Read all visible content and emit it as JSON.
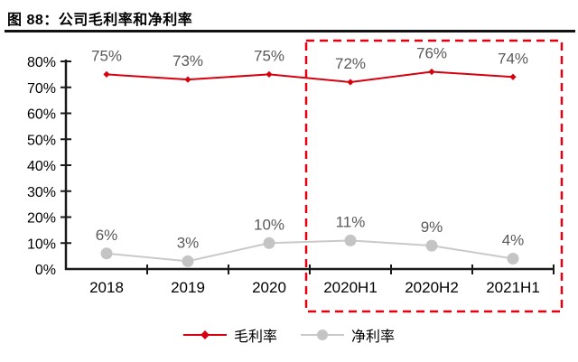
{
  "figure": {
    "title": "图 88：公司毛利率和净利率"
  },
  "chart_data": {
    "type": "line",
    "title": "公司毛利率和净利率",
    "categories": [
      "2018",
      "2019",
      "2020",
      "2020H1",
      "2020H2",
      "2021H1"
    ],
    "series": [
      {
        "name": "毛利率",
        "values": [
          75,
          73,
          75,
          72,
          76,
          74
        ],
        "labels": [
          "75%",
          "73%",
          "75%",
          "72%",
          "76%",
          "74%"
        ],
        "color": "#d7000f",
        "marker": "diamond"
      },
      {
        "name": "净利率",
        "values": [
          6,
          3,
          10,
          11,
          9,
          4
        ],
        "labels": [
          "6%",
          "3%",
          "10%",
          "11%",
          "9%",
          "4%"
        ],
        "color": "#c9c9c9",
        "marker_color": "#c4c4c4",
        "marker": "circle"
      }
    ],
    "ylim": [
      0,
      80
    ],
    "y_tick_step": 10,
    "y_tick_labels": [
      "0%",
      "10%",
      "20%",
      "30%",
      "40%",
      "50%",
      "60%",
      "70%",
      "80%"
    ],
    "grid": false,
    "legend_position": "bottom",
    "highlight_box": {
      "from_category": "2020H1",
      "to_category": "2021H1",
      "color": "#e60012",
      "style": "dashed"
    }
  },
  "colors": {
    "accent_red": "#d7000f",
    "highlight_red": "#e60012",
    "net_line": "#c9c9c9",
    "net_marker": "#c4c4c4",
    "data_label": "#595959",
    "axis": "#1a1a1a"
  }
}
